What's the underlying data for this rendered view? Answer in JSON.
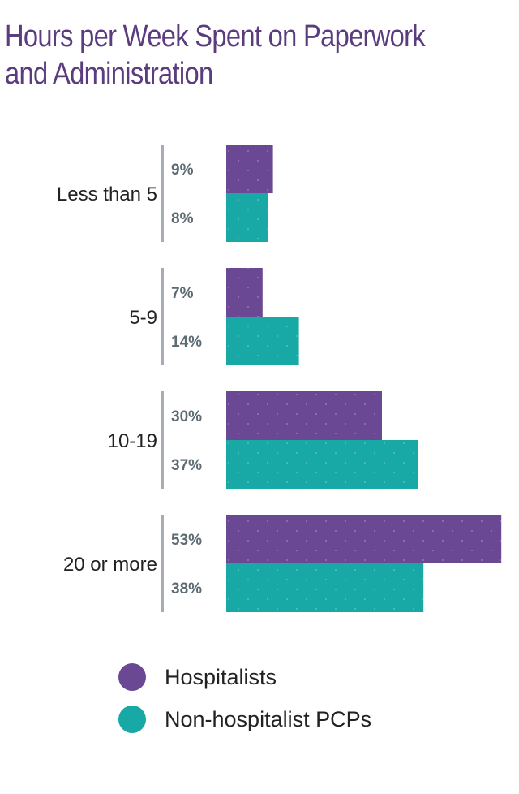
{
  "title_lines": [
    "Hours per Week Spent on Paperwork",
    "and Administration"
  ],
  "colors": {
    "hospitalists": "#6b4893",
    "pcps": "#18a9a7",
    "divider": "#a7adb3",
    "pct_text": "#5d6b73",
    "title": "#5b3d7f"
  },
  "chart_data": {
    "type": "bar",
    "orientation": "horizontal",
    "title": "Hours per Week Spent on Paperwork and Administration",
    "categories": [
      "Less than 5",
      "5-9",
      "10-19",
      "20 or more"
    ],
    "series": [
      {
        "name": "Hospitalists",
        "values": [
          9,
          7,
          30,
          53
        ],
        "labels": [
          "9%",
          "7%",
          "30%",
          "53%"
        ]
      },
      {
        "name": "Non-hospitalist PCPs",
        "values": [
          8,
          14,
          37,
          38
        ],
        "labels": [
          "8%",
          "14%",
          "37%",
          "38%"
        ]
      }
    ],
    "unit": "%",
    "legend_position": "bottom",
    "grid": false
  },
  "legend": [
    {
      "label": "Hospitalists",
      "color": "#6b4893"
    },
    {
      "label": "Non-hospitalist PCPs",
      "color": "#18a9a7"
    }
  ]
}
